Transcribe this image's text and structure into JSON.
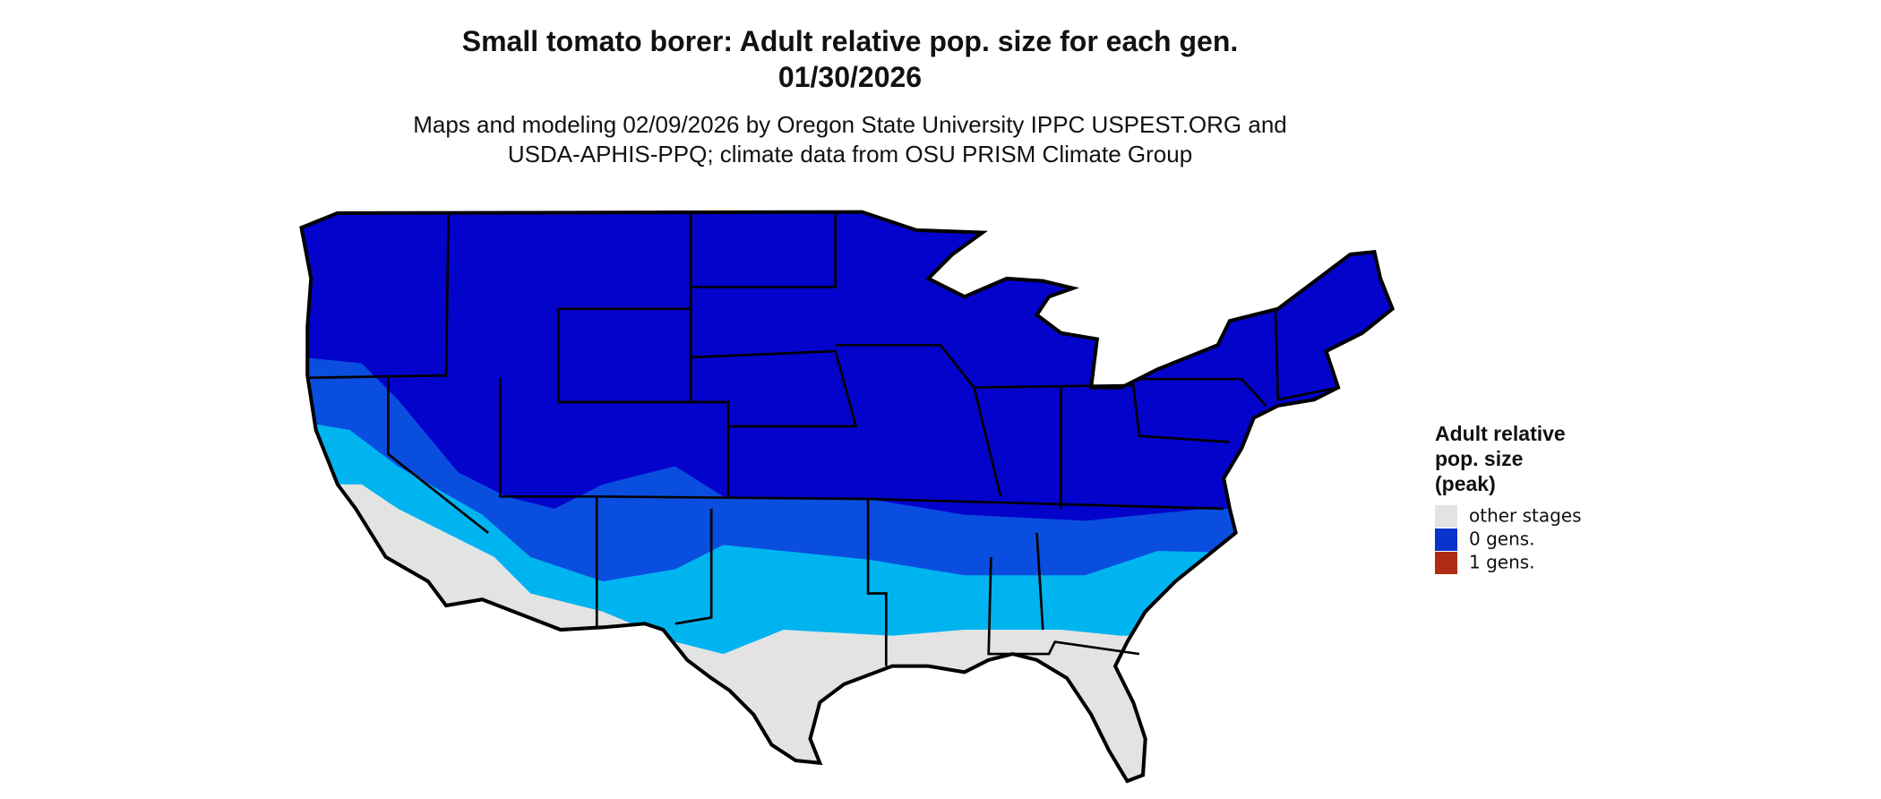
{
  "title": [
    "Small tomato borer: Adult relative pop. size for each gen.",
    "01/30/2026"
  ],
  "subtitle": [
    "Maps and modeling 02/09/2026 by Oregon State University IPPC USPEST.ORG and",
    "USDA-APHIS-PPQ; climate data from OSU PRISM Climate Group"
  ],
  "legend": {
    "title": [
      "Adult relative",
      "pop. size",
      "(peak)"
    ],
    "items": [
      {
        "label": "other stages",
        "color": "#e3e3e3"
      },
      {
        "label": "0 gens.",
        "color": "#0a33cc"
      },
      {
        "label": "1 gens.",
        "color": "#b02a15"
      }
    ]
  }
}
